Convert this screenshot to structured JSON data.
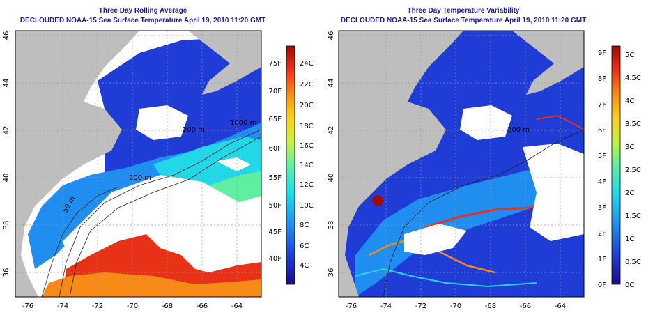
{
  "panels": [
    {
      "title_line1": "Three Day Rolling Average",
      "title_line2": "DECLOUDED NOAA-15 Sea Surface Temperature April 19, 2010 11:20 GMT",
      "x_ticks": [
        "-76",
        "-74",
        "-72",
        "-70",
        "-68",
        "-66",
        "-64"
      ],
      "y_ticks": [
        "36",
        "38",
        "40",
        "42",
        "44",
        "46"
      ],
      "contours": [
        "50 m",
        "200 m",
        "200 m",
        "1000 m"
      ],
      "colorbar_colors": [
        "#1a0a8c",
        "#1f3cd6",
        "#1f8ef0",
        "#22d8e8",
        "#5ef0a0",
        "#c8f040",
        "#f8d020",
        "#f88a18",
        "#e83218",
        "#a00a0a"
      ],
      "colorbar_f": [
        "40F",
        "45F",
        "50F",
        "55F",
        "60F",
        "65F",
        "70F",
        "75F"
      ],
      "colorbar_c": [
        "4C",
        "6C",
        "8C",
        "10C",
        "12C",
        "14C",
        "16C",
        "18C",
        "20C",
        "22C",
        "24C"
      ]
    },
    {
      "title_line1": "Three Day Temperature Variability",
      "title_line2": "DECLOUDED NOAA-15 Sea Surface Temperature April 19, 2010 11:20 GMT",
      "x_ticks": [
        "-76",
        "-74",
        "-72",
        "-70",
        "-68",
        "-66",
        "-64"
      ],
      "y_ticks": [
        "36",
        "38",
        "40",
        "42",
        "44",
        "46"
      ],
      "contours": [
        "200 m"
      ],
      "colorbar_colors": [
        "#1a0a8c",
        "#1f3cd6",
        "#1f8ef0",
        "#22d8e8",
        "#5ef0a0",
        "#c8f040",
        "#f8d020",
        "#f88a18",
        "#e83218",
        "#a00a0a"
      ],
      "colorbar_f": [
        "0F",
        "1F",
        "2F",
        "3F",
        "4F",
        "5F",
        "6F",
        "7F",
        "8F",
        "9F"
      ],
      "colorbar_c": [
        "0C",
        "0.5C",
        "1C",
        "1.5C",
        "2C",
        "2.5C",
        "3C",
        "3.5C",
        "4C",
        "4.5C",
        "5C"
      ]
    }
  ],
  "colors": {
    "land": "#bebebe",
    "deep_blue": "#1f3cd6",
    "mid_blue": "#1f8ef0",
    "cyan": "#22d8e8",
    "green": "#5ef0a0",
    "orange": "#f88a18",
    "red": "#e83218",
    "title": "#1a1aa6"
  }
}
